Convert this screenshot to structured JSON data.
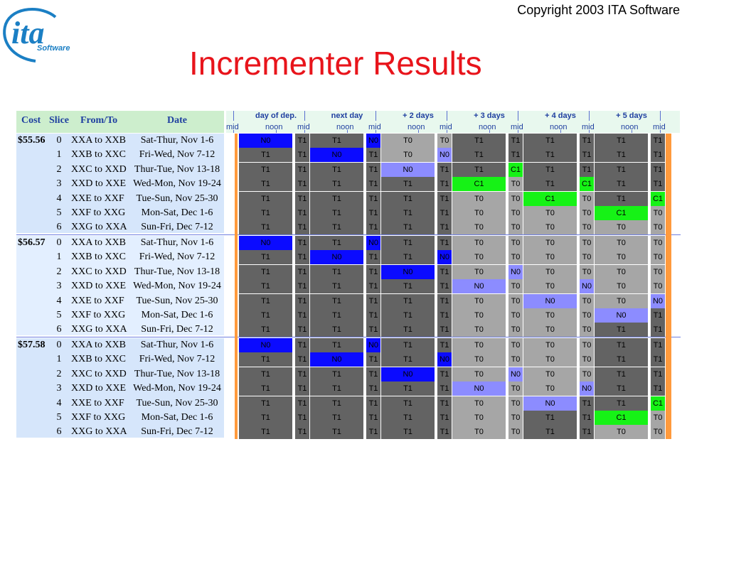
{
  "copyright": "Copyright 2003 ITA Software",
  "title": "Incrementer Results",
  "logo": {
    "main": "ita",
    "sub": "Software"
  },
  "columns": {
    "cost": "Cost",
    "slice": "Slice",
    "from_to": "From/To",
    "date": "Date"
  },
  "day_headers": [
    "day of dep.",
    "next day",
    "+ 2 days",
    "+ 3 days",
    "+ 4 days",
    "+ 5 days"
  ],
  "time_labels": {
    "mid": "mid",
    "noon": "noon"
  },
  "slices": [
    {
      "slice": "0",
      "from_to": "XXA to XXB",
      "date": "Sat-Thur, Nov 1-6"
    },
    {
      "slice": "1",
      "from_to": "XXB to XXC",
      "date": "Fri-Wed, Nov 7-12"
    },
    {
      "slice": "2",
      "from_to": "XXC to XXD",
      "date": "Thur-Tue, Nov 13-18"
    },
    {
      "slice": "3",
      "from_to": "XXD to XXE",
      "date": "Wed-Mon, Nov 19-24"
    },
    {
      "slice": "4",
      "from_to": "XXE to XXF",
      "date": "Tue-Sun, Nov 25-30"
    },
    {
      "slice": "5",
      "from_to": "XXF to XXG",
      "date": "Mon-Sat, Dec 1-6"
    },
    {
      "slice": "6",
      "from_to": "XXG to XXA",
      "date": "Sun-Fri, Dec 7-12"
    }
  ],
  "groups": [
    {
      "cost": "$55.56",
      "rows": [
        [
          "N0",
          "T1",
          "T1",
          "N0",
          "T0",
          "T0",
          "T1",
          "T1",
          "T1",
          "T1",
          "T1",
          "T1"
        ],
        [
          "T1",
          "T1",
          "N0",
          "T1",
          "T0",
          "N0",
          "T1",
          "T1",
          "T1",
          "T1",
          "T1",
          "T1"
        ],
        [
          "T1",
          "T1",
          "T1",
          "T1",
          "N0",
          "T1",
          "T1",
          "C1",
          "T1",
          "T1",
          "T1",
          "T1"
        ],
        [
          "T1",
          "T1",
          "T1",
          "T1",
          "T1",
          "T1",
          "C1",
          "T0",
          "T1",
          "C1",
          "T1",
          "T1"
        ],
        [
          "T1",
          "T1",
          "T1",
          "T1",
          "T1",
          "T1",
          "T0",
          "T0",
          "C1",
          "T0",
          "T1",
          "C1"
        ],
        [
          "T1",
          "T1",
          "T1",
          "T1",
          "T1",
          "T1",
          "T0",
          "T0",
          "T0",
          "T0",
          "C1",
          "T0"
        ],
        [
          "T1",
          "T1",
          "T1",
          "T1",
          "T1",
          "T1",
          "T0",
          "T0",
          "T0",
          "T0",
          "T0",
          "T0"
        ]
      ],
      "colors": [
        [
          "blue",
          "dark",
          "dark",
          "blue",
          "light",
          "light",
          "dark",
          "dark",
          "dark",
          "dark",
          "dark",
          "dark"
        ],
        [
          "dark",
          "dark",
          "blue",
          "dark",
          "light",
          "lblue",
          "dark",
          "dark",
          "dark",
          "dark",
          "dark",
          "dark"
        ],
        [
          "dark",
          "dark",
          "dark",
          "dark",
          "lblue",
          "dark",
          "dark",
          "green",
          "dark",
          "dark",
          "dark",
          "dark"
        ],
        [
          "dark",
          "dark",
          "dark",
          "dark",
          "dark",
          "dark",
          "green",
          "light",
          "dark",
          "green",
          "dark",
          "dark"
        ],
        [
          "dark",
          "dark",
          "dark",
          "dark",
          "dark",
          "dark",
          "light",
          "light",
          "green",
          "light",
          "dark",
          "green"
        ],
        [
          "dark",
          "dark",
          "dark",
          "dark",
          "dark",
          "dark",
          "light",
          "light",
          "light",
          "light",
          "green",
          "light"
        ],
        [
          "dark",
          "dark",
          "dark",
          "dark",
          "dark",
          "dark",
          "light",
          "light",
          "light",
          "light",
          "light",
          "light"
        ]
      ]
    },
    {
      "cost": "$56.57",
      "rows": [
        [
          "N0",
          "T1",
          "T1",
          "N0",
          "T1",
          "T1",
          "T0",
          "T0",
          "T0",
          "T0",
          "T0",
          "T0"
        ],
        [
          "T1",
          "T1",
          "N0",
          "T1",
          "T1",
          "N0",
          "T0",
          "T0",
          "T0",
          "T0",
          "T0",
          "T0"
        ],
        [
          "T1",
          "T1",
          "T1",
          "T1",
          "N0",
          "T1",
          "T0",
          "N0",
          "T0",
          "T0",
          "T0",
          "T0"
        ],
        [
          "T1",
          "T1",
          "T1",
          "T1",
          "T1",
          "T1",
          "N0",
          "T0",
          "T0",
          "N0",
          "T0",
          "T0"
        ],
        [
          "T1",
          "T1",
          "T1",
          "T1",
          "T1",
          "T1",
          "T0",
          "T0",
          "N0",
          "T0",
          "T0",
          "N0"
        ],
        [
          "T1",
          "T1",
          "T1",
          "T1",
          "T1",
          "T1",
          "T0",
          "T0",
          "T0",
          "T0",
          "N0",
          "T1"
        ],
        [
          "T1",
          "T1",
          "T1",
          "T1",
          "T1",
          "T1",
          "T0",
          "T0",
          "T0",
          "T0",
          "T1",
          "T1"
        ]
      ],
      "colors": [
        [
          "blue",
          "dark",
          "dark",
          "blue",
          "dark",
          "dark",
          "light",
          "light",
          "light",
          "light",
          "light",
          "light"
        ],
        [
          "dark",
          "dark",
          "blue",
          "dark",
          "dark",
          "blue",
          "light",
          "light",
          "light",
          "light",
          "light",
          "light"
        ],
        [
          "dark",
          "dark",
          "dark",
          "dark",
          "blue",
          "dark",
          "light",
          "lblue",
          "light",
          "light",
          "light",
          "light"
        ],
        [
          "dark",
          "dark",
          "dark",
          "dark",
          "dark",
          "dark",
          "lblue",
          "light",
          "light",
          "lblue",
          "light",
          "light"
        ],
        [
          "dark",
          "dark",
          "dark",
          "dark",
          "dark",
          "dark",
          "light",
          "light",
          "lblue",
          "light",
          "light",
          "lblue"
        ],
        [
          "dark",
          "dark",
          "dark",
          "dark",
          "dark",
          "dark",
          "light",
          "light",
          "light",
          "light",
          "lblue",
          "dark"
        ],
        [
          "dark",
          "dark",
          "dark",
          "dark",
          "dark",
          "dark",
          "light",
          "light",
          "light",
          "light",
          "dark",
          "dark"
        ]
      ]
    },
    {
      "cost": "$57.58",
      "rows": [
        [
          "N0",
          "T1",
          "T1",
          "N0",
          "T1",
          "T1",
          "T0",
          "T0",
          "T0",
          "T0",
          "T1",
          "T1"
        ],
        [
          "T1",
          "T1",
          "N0",
          "T1",
          "T1",
          "N0",
          "T0",
          "T0",
          "T0",
          "T0",
          "T1",
          "T1"
        ],
        [
          "T1",
          "T1",
          "T1",
          "T1",
          "N0",
          "T1",
          "T0",
          "N0",
          "T0",
          "T0",
          "T1",
          "T1"
        ],
        [
          "T1",
          "T1",
          "T1",
          "T1",
          "T1",
          "T1",
          "N0",
          "T0",
          "T0",
          "N0",
          "T1",
          "T1"
        ],
        [
          "T1",
          "T1",
          "T1",
          "T1",
          "T1",
          "T1",
          "T0",
          "T0",
          "N0",
          "T1",
          "T1",
          "C1"
        ],
        [
          "T1",
          "T1",
          "T1",
          "T1",
          "T1",
          "T1",
          "T0",
          "T0",
          "T1",
          "T1",
          "C1",
          "T0"
        ],
        [
          "T1",
          "T1",
          "T1",
          "T1",
          "T1",
          "T1",
          "T0",
          "T0",
          "T1",
          "T1",
          "T0",
          "T0"
        ]
      ],
      "colors": [
        [
          "blue",
          "dark",
          "dark",
          "blue",
          "dark",
          "dark",
          "light",
          "light",
          "light",
          "light",
          "dark",
          "dark"
        ],
        [
          "dark",
          "dark",
          "blue",
          "dark",
          "dark",
          "blue",
          "light",
          "light",
          "light",
          "light",
          "dark",
          "dark"
        ],
        [
          "dark",
          "dark",
          "dark",
          "dark",
          "blue",
          "dark",
          "light",
          "lblue",
          "light",
          "light",
          "dark",
          "dark"
        ],
        [
          "dark",
          "dark",
          "dark",
          "dark",
          "dark",
          "dark",
          "lblue",
          "light",
          "light",
          "lblue",
          "dark",
          "dark"
        ],
        [
          "dark",
          "dark",
          "dark",
          "dark",
          "dark",
          "dark",
          "light",
          "light",
          "lblue",
          "dark",
          "dark",
          "green"
        ],
        [
          "dark",
          "dark",
          "dark",
          "dark",
          "dark",
          "dark",
          "light",
          "light",
          "dark",
          "dark",
          "green",
          "light"
        ],
        [
          "dark",
          "dark",
          "dark",
          "dark",
          "dark",
          "dark",
          "light",
          "light",
          "dark",
          "dark",
          "light",
          "light"
        ]
      ]
    }
  ]
}
